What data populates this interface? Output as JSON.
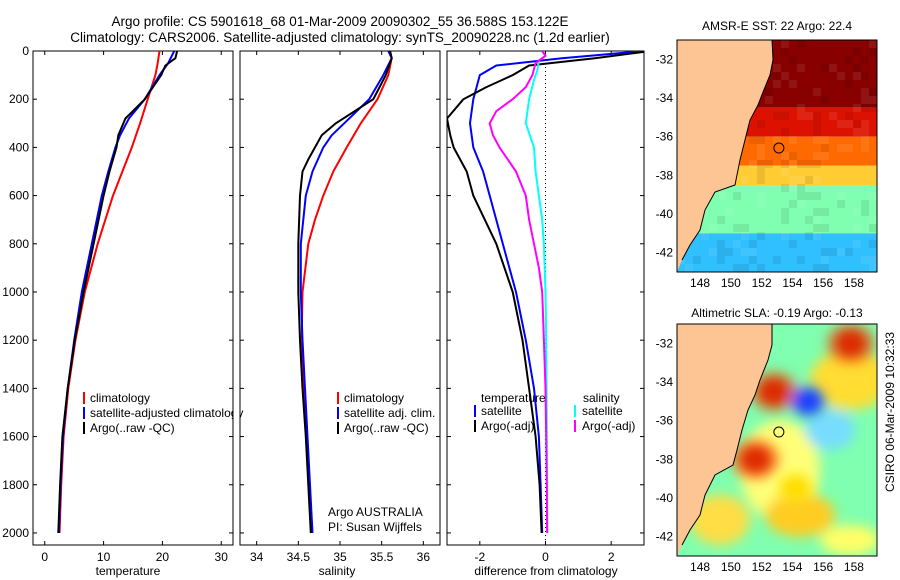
{
  "header": {
    "line1": "Argo profile: CS 5901618_68 01-Mar-2009 20090302_55 36.588S 153.122E",
    "line2": "Climatology: CARS2006. Satellite-adjusted climatology: synTS_20090228.nc (1.2d earlier)"
  },
  "side_label": "CSIRO 06-Mar-2009 10:32:33",
  "colors": {
    "red": "#ff0000",
    "blue": "#0000ff",
    "black": "#000000",
    "cyan": "#00ffff",
    "magenta": "#ff00ff",
    "land": "#fcc593",
    "dotted": "#000000"
  },
  "chart_data": [
    {
      "type": "line",
      "id": "temperature",
      "xlabel": "temperature",
      "ylabel": "",
      "xlim": [
        -2,
        32
      ],
      "ylim": [
        2050,
        0
      ],
      "xticks": [
        0,
        10,
        20,
        30
      ],
      "yticks": [
        0,
        200,
        400,
        600,
        800,
        1000,
        1200,
        1400,
        1600,
        1800,
        2000
      ],
      "legend": {
        "position": "lower-right",
        "entries": [
          "climatology",
          "satellite-adjusted climatology",
          "Argo(..raw -QC)"
        ]
      },
      "series": [
        {
          "name": "climatology",
          "color": "red",
          "depth": [
            0,
            50,
            100,
            200,
            300,
            400,
            500,
            600,
            800,
            1000,
            1200,
            1400,
            1600,
            1800,
            2000
          ],
          "values": [
            19.5,
            19.2,
            18.8,
            17.5,
            16.2,
            14.8,
            13.2,
            11.6,
            9.0,
            6.8,
            5.2,
            4.0,
            3.2,
            2.8,
            2.5
          ]
        },
        {
          "name": "satellite-adjusted climatology",
          "color": "blue",
          "depth": [
            0,
            50,
            100,
            200,
            280,
            350,
            400,
            500,
            600,
            800,
            1000,
            1200,
            1400,
            1600,
            1800,
            2000
          ],
          "values": [
            22.0,
            21.0,
            19.5,
            17.0,
            14.3,
            12.8,
            12.0,
            10.8,
            9.7,
            8.0,
            6.3,
            5.0,
            3.9,
            3.1,
            2.7,
            2.4
          ]
        },
        {
          "name": "Argo(..raw -QC)",
          "color": "black",
          "depth": [
            0,
            30,
            60,
            100,
            200,
            280,
            350,
            400,
            500,
            600,
            800,
            1000,
            1200,
            1400,
            1600,
            1800,
            2000
          ],
          "values": [
            22.5,
            22.2,
            20.5,
            19.8,
            17.0,
            13.7,
            12.5,
            12.2,
            11.0,
            10.0,
            8.3,
            6.6,
            5.1,
            3.9,
            3.0,
            2.6,
            2.3
          ]
        }
      ]
    },
    {
      "type": "line",
      "id": "salinity",
      "xlabel": "salinity",
      "ylabel": "",
      "xlim": [
        33.8,
        36.2
      ],
      "ylim": [
        2050,
        0
      ],
      "xticks": [
        34,
        34.5,
        35,
        35.5,
        36
      ],
      "xticklabels": [
        "34",
        "34.5",
        "35",
        "35.5",
        "36"
      ],
      "legend": {
        "position": "lower-right",
        "entries": [
          "climatology",
          "satellite adj. clim.",
          "Argo(..raw -QC)"
        ]
      },
      "annotation": [
        "Argo AUSTRALIA",
        "PI: Susan Wijffels"
      ],
      "series": [
        {
          "name": "climatology",
          "color": "red",
          "depth": [
            0,
            30,
            100,
            200,
            300,
            400,
            500,
            600,
            700,
            800,
            1000,
            1200,
            1400,
            1600,
            1800,
            2000
          ],
          "values": [
            35.6,
            35.62,
            35.58,
            35.45,
            35.25,
            35.08,
            34.92,
            34.8,
            34.7,
            34.62,
            34.55,
            34.54,
            34.57,
            34.6,
            34.63,
            34.66
          ]
        },
        {
          "name": "satellite adj. clim.",
          "color": "blue",
          "depth": [
            0,
            30,
            100,
            200,
            300,
            350,
            400,
            500,
            600,
            800,
            1000,
            1200,
            1400,
            1600,
            1800,
            2000
          ],
          "values": [
            35.58,
            35.62,
            35.52,
            35.35,
            35.05,
            34.9,
            34.8,
            34.67,
            34.59,
            34.53,
            34.53,
            34.55,
            34.58,
            34.61,
            34.64,
            34.67
          ]
        },
        {
          "name": "Argo(..raw -QC)",
          "color": "black",
          "depth": [
            0,
            30,
            100,
            200,
            300,
            350,
            400,
            450,
            500,
            600,
            800,
            1000,
            1200,
            1400,
            1600,
            1800,
            2000
          ],
          "values": [
            35.6,
            35.62,
            35.55,
            35.4,
            34.95,
            34.78,
            34.7,
            34.62,
            34.55,
            34.52,
            34.5,
            34.5,
            34.52,
            34.55,
            34.59,
            34.62,
            34.65
          ]
        }
      ]
    },
    {
      "type": "line",
      "id": "difference",
      "xlabel": "difference from climatology",
      "ylabel": "",
      "xlim": [
        -3,
        3
      ],
      "ylim": [
        2050,
        0
      ],
      "xticks": [
        -2,
        0,
        2
      ],
      "xticklabels": [
        "-2",
        "0",
        "2"
      ],
      "zero_line": true,
      "legend": {
        "position": "lower",
        "groups": [
          {
            "title": "temperature",
            "entries": [
              "satellite",
              "Argo(-adj)"
            ]
          },
          {
            "title": "salinity",
            "entries": [
              "satellite",
              "Argo(-adj)"
            ]
          }
        ]
      },
      "series": [
        {
          "name": "temperature satellite",
          "color": "blue",
          "depth": [
            0,
            30,
            60,
            100,
            150,
            200,
            300,
            400,
            500,
            600,
            800,
            1000,
            1200,
            1400,
            1600,
            1800,
            2000
          ],
          "values": [
            3.0,
            0.5,
            -1.5,
            -2.0,
            -2.1,
            -2.2,
            -2.3,
            -2.2,
            -1.9,
            -1.7,
            -1.3,
            -0.9,
            -0.6,
            -0.35,
            -0.2,
            -0.15,
            -0.1
          ]
        },
        {
          "name": "temperature Argo(-adj)",
          "color": "black",
          "depth": [
            0,
            30,
            60,
            100,
            150,
            200,
            280,
            350,
            400,
            450,
            500,
            600,
            800,
            1000,
            1200,
            1400,
            1600,
            1800,
            2000
          ],
          "values": [
            3.2,
            1.5,
            -0.5,
            -1.0,
            -1.8,
            -2.5,
            -3.0,
            -2.9,
            -2.8,
            -2.6,
            -2.4,
            -2.2,
            -1.5,
            -1.0,
            -0.7,
            -0.5,
            -0.3,
            -0.18,
            -0.12
          ]
        },
        {
          "name": "salinity satellite",
          "color": "cyan",
          "depth": [
            0,
            20,
            40,
            80,
            120,
            200,
            300,
            400,
            500,
            600,
            700,
            800,
            1000,
            1200,
            1400,
            1600,
            1800,
            2000
          ],
          "values": [
            -0.1,
            0.0,
            -0.2,
            -0.25,
            -0.35,
            -0.5,
            -0.6,
            -0.35,
            -0.3,
            -0.2,
            -0.1,
            -0.05,
            0.0,
            0.02,
            0.03,
            0.04,
            0.05,
            0.06
          ]
        },
        {
          "name": "salinity Argo(-adj)",
          "color": "magenta",
          "depth": [
            0,
            20,
            50,
            100,
            150,
            200,
            250,
            300,
            350,
            400,
            500,
            600,
            700,
            800,
            900,
            1000,
            1200,
            1400,
            1600,
            1800,
            2000
          ],
          "values": [
            -0.1,
            0.0,
            -0.3,
            -0.4,
            -0.6,
            -1.0,
            -1.5,
            -1.7,
            -1.6,
            -1.4,
            -0.9,
            -0.6,
            -0.5,
            -0.35,
            -0.2,
            -0.1,
            -0.05,
            0.0,
            0.02,
            0.04,
            0.05
          ]
        }
      ]
    },
    {
      "type": "heatmap",
      "id": "sst-map",
      "title": "AMSR-E SST: 22 Argo: 22.4",
      "xlim": [
        146.5,
        159.5
      ],
      "ylim": [
        -43,
        -31
      ],
      "xticks": [
        148,
        150,
        152,
        154,
        156,
        158
      ],
      "yticks": [
        -32,
        -34,
        -36,
        -38,
        -40,
        -42
      ],
      "argo_position": {
        "lon": 153.122,
        "lat": -36.588
      },
      "bands": [
        {
          "lat": [
            -31,
            -34.5
          ],
          "color": "#880000"
        },
        {
          "lat": [
            -34.5,
            -36
          ],
          "color": "#dd1100"
        },
        {
          "lat": [
            -36,
            -37.5
          ],
          "color": "#ff6a00"
        },
        {
          "lat": [
            -37.5,
            -38.5
          ],
          "color": "#ffcc33"
        },
        {
          "lat": [
            -38.5,
            -41
          ],
          "color": "#7fffaf"
        },
        {
          "lat": [
            -41,
            -43
          ],
          "color": "#30bfff"
        }
      ]
    },
    {
      "type": "heatmap",
      "id": "sla-map",
      "title": "Altimetric SLA: -0.19 Argo: -0.13",
      "xlim": [
        146.5,
        159.5
      ],
      "ylim": [
        -43,
        -31
      ],
      "xticks": [
        148,
        150,
        152,
        154,
        156,
        158
      ],
      "yticks": [
        -32,
        -34,
        -36,
        -38,
        -40,
        -42
      ],
      "argo_position": {
        "lon": 153.122,
        "lat": -36.588
      },
      "features": [
        {
          "lon": 157.8,
          "lat": -32.0,
          "color": "#aa0000"
        },
        {
          "lon": 152.8,
          "lat": -34.5,
          "color": "#aa0000"
        },
        {
          "lon": 151.6,
          "lat": -38.0,
          "color": "#aa0000"
        },
        {
          "lon": 155.0,
          "lat": -35.0,
          "color": "#1e40ff"
        },
        {
          "lon": 154.2,
          "lat": -39.5,
          "color": "#ffdd00"
        }
      ]
    }
  ]
}
